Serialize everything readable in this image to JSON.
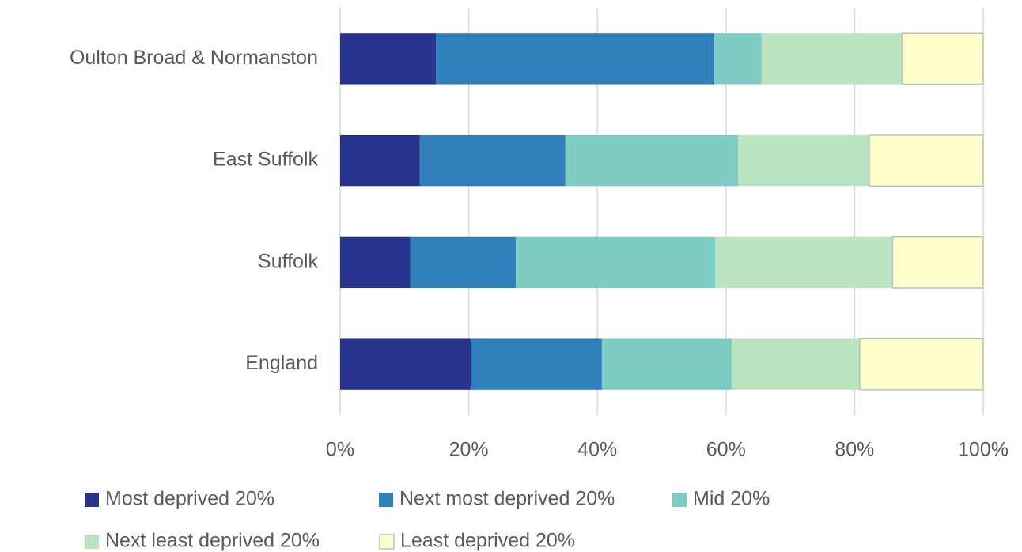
{
  "chart_data": {
    "type": "stacked-bar-horizontal",
    "categories": [
      "Oulton Broad & Normanston",
      "East Suffolk",
      "Suffolk",
      "England"
    ],
    "series": [
      {
        "name": "Most deprived 20%",
        "color": "#27338f",
        "values": [
          14.9,
          12.4,
          10.9,
          20.3
        ]
      },
      {
        "name": "Next most deprived 20%",
        "color": "#2e7fba",
        "values": [
          43.3,
          22.6,
          16.4,
          20.4
        ]
      },
      {
        "name": "Mid 20%",
        "color": "#7ecdc4",
        "values": [
          7.3,
          26.9,
          31.0,
          20.2
        ]
      },
      {
        "name": "Next least deprived 20%",
        "color": "#b9e4bf",
        "values": [
          21.9,
          20.4,
          27.6,
          19.9
        ]
      },
      {
        "name": "Least deprived 20%",
        "color": "#ffffcc",
        "values": [
          12.6,
          17.7,
          14.1,
          19.2
        ]
      }
    ],
    "xlim": [
      0,
      100
    ],
    "xticks": [
      {
        "value": 0,
        "label": "0%"
      },
      {
        "value": 20,
        "label": "20%"
      },
      {
        "value": 40,
        "label": "40%"
      },
      {
        "value": 60,
        "label": "60%"
      },
      {
        "value": 80,
        "label": "80%"
      },
      {
        "value": 100,
        "label": "100%"
      }
    ],
    "grid": true,
    "legend": "bottom"
  }
}
